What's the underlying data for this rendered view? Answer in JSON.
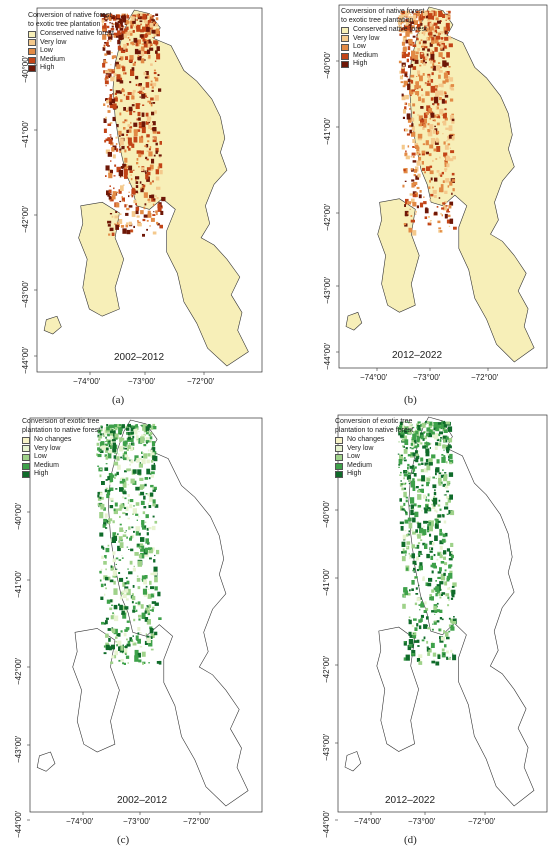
{
  "panels": [
    {
      "id": "a",
      "label": "(a)",
      "period": "2002–2012",
      "legend_title": [
        "Conversion of native forest",
        "to exotic tree plantation"
      ],
      "legend": [
        {
          "label": "Conserved native forest",
          "color": "#f7efb8"
        },
        {
          "label": "Very low",
          "color": "#f4c98c"
        },
        {
          "label": "Low",
          "color": "#e28a45"
        },
        {
          "label": "Medium",
          "color": "#c24417"
        },
        {
          "label": "High",
          "color": "#6e1707"
        }
      ],
      "lat_ticks": [
        "−40°00′",
        "−41°00′",
        "−42°00′",
        "−43°00′",
        "−44°00′"
      ],
      "lon_ticks": [
        "−74°00′",
        "−73°00′",
        "−72°00′"
      ],
      "base_fill": "#f7efb8"
    },
    {
      "id": "b",
      "label": "(b)",
      "period": "2012–2022",
      "legend_title": [
        "Conversion of native forest",
        "to exotic tree plantation"
      ],
      "legend": [
        {
          "label": "Conserved native forest",
          "color": "#f7efb8"
        },
        {
          "label": "Very low",
          "color": "#f4c98c"
        },
        {
          "label": "Low",
          "color": "#e28a45"
        },
        {
          "label": "Medium",
          "color": "#c24417"
        },
        {
          "label": "High",
          "color": "#6e1707"
        }
      ],
      "lat_ticks": [
        "−40°00′",
        "−41°00′",
        "−42°00′",
        "−43°00′",
        "−44°00′"
      ],
      "lon_ticks": [
        "−74°00′",
        "−73°00′",
        "−72°00′"
      ],
      "base_fill": "#f7efb8"
    },
    {
      "id": "c",
      "label": "(c)",
      "period": "2002–2012",
      "legend_title": [
        "Conversion of exotic tree",
        "plantation to native forest"
      ],
      "legend": [
        {
          "label": "No changes",
          "color": "#f7f3c7"
        },
        {
          "label": "Very low",
          "color": "#e7f3d0"
        },
        {
          "label": "Low",
          "color": "#9fd28a"
        },
        {
          "label": "Medium",
          "color": "#3ea14a"
        },
        {
          "label": "High",
          "color": "#0f6b2a"
        }
      ],
      "lat_ticks": [
        "−40°00′",
        "−41°00′",
        "−42°00′",
        "−43°00′",
        "−44°00′"
      ],
      "lon_ticks": [
        "−74°00′",
        "−73°00′",
        "−72°00′"
      ],
      "base_fill": "#ffffff"
    },
    {
      "id": "d",
      "label": "(d)",
      "period": "2012–2022",
      "legend_title": [
        "Conversion of exotic tree",
        "plantation to native forest"
      ],
      "legend": [
        {
          "label": "No changes",
          "color": "#f7f3c7"
        },
        {
          "label": "Very low",
          "color": "#e7f3d0"
        },
        {
          "label": "Low",
          "color": "#9fd28a"
        },
        {
          "label": "Medium",
          "color": "#3ea14a"
        },
        {
          "label": "High",
          "color": "#0f6b2a"
        }
      ],
      "lat_ticks": [
        "−40°00′",
        "−41°00′",
        "−42°00′",
        "−43°00′",
        "−44°00′"
      ],
      "lon_ticks": [
        "−74°00′",
        "−73°00′",
        "−72°00′"
      ],
      "base_fill": "#ffffff"
    }
  ]
}
